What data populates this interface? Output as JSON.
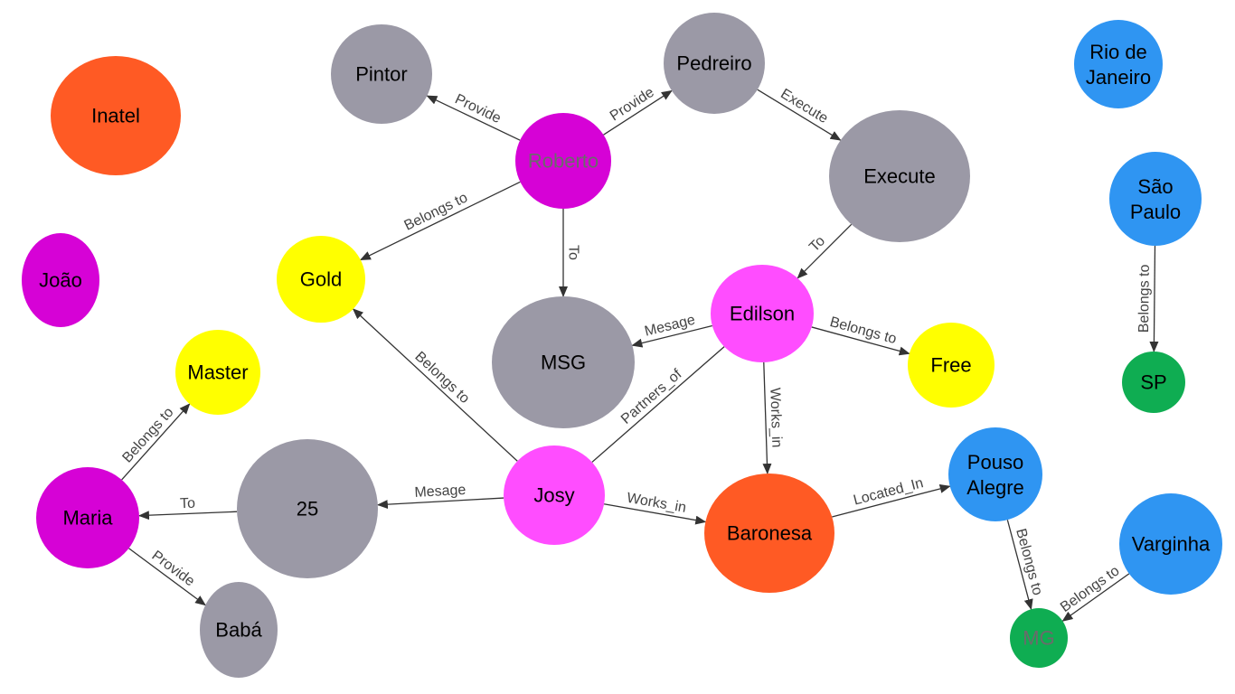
{
  "palette": {
    "gray": "#9b99a6",
    "magenta": "#d602d6",
    "pink": "#ff4dff",
    "yellow": "#ffff00",
    "orange": "#ff5a24",
    "blue": "#2f95f2",
    "green": "#0fad52",
    "label_dark": "#000000",
    "label_muted": "#6b6b6b",
    "edge": "#333333"
  },
  "nodes": [
    {
      "id": "inatel",
      "label": "Inatel",
      "color": "orange"
    },
    {
      "id": "joao",
      "label": "João",
      "color": "magenta"
    },
    {
      "id": "pintor",
      "label": "Pintor",
      "color": "gray"
    },
    {
      "id": "pedreiro",
      "label": "Pedreiro",
      "color": "gray"
    },
    {
      "id": "roberto",
      "label": "Roberto",
      "color": "magenta",
      "text_color": "label_muted"
    },
    {
      "id": "execute",
      "label": "Execute",
      "color": "gray"
    },
    {
      "id": "gold",
      "label": "Gold",
      "color": "yellow"
    },
    {
      "id": "msg",
      "label": "MSG",
      "color": "gray"
    },
    {
      "id": "edilson",
      "label": "Edilson",
      "color": "pink"
    },
    {
      "id": "free",
      "label": "Free",
      "color": "yellow"
    },
    {
      "id": "master",
      "label": "Master",
      "color": "yellow"
    },
    {
      "id": "maria",
      "label": "Maria",
      "color": "magenta"
    },
    {
      "id": "n25",
      "label": "25",
      "color": "gray"
    },
    {
      "id": "josy",
      "label": "Josy",
      "color": "pink"
    },
    {
      "id": "baronesa",
      "label": "Baronesa",
      "color": "orange"
    },
    {
      "id": "baba",
      "label": "Babá",
      "color": "gray"
    },
    {
      "id": "rio",
      "label": "Rio de Janeiro",
      "color": "blue"
    },
    {
      "id": "saopaulo",
      "label": "São Paulo",
      "color": "blue"
    },
    {
      "id": "sp",
      "label": "SP",
      "color": "green"
    },
    {
      "id": "pousoalegre",
      "label": "Pouso Alegre",
      "color": "blue"
    },
    {
      "id": "varginha",
      "label": "Varginha",
      "color": "blue"
    },
    {
      "id": "mg",
      "label": "MG",
      "color": "green",
      "text_color": "label_muted"
    }
  ],
  "edges": [
    {
      "from": "roberto",
      "to": "pintor",
      "label": "Provide"
    },
    {
      "from": "roberto",
      "to": "pedreiro",
      "label": "Provide"
    },
    {
      "from": "pedreiro",
      "to": "execute",
      "label": "Execute"
    },
    {
      "from": "roberto",
      "to": "gold",
      "label": "Belongs to"
    },
    {
      "from": "roberto",
      "to": "msg",
      "label": "To"
    },
    {
      "from": "execute",
      "to": "edilson",
      "label": "To"
    },
    {
      "from": "edilson",
      "to": "msg",
      "label": "Mesage"
    },
    {
      "from": "edilson",
      "to": "free",
      "label": "Belongs to"
    },
    {
      "from": "josy",
      "to": "gold",
      "label": "Belongs to"
    },
    {
      "from": "josy",
      "to": "edilson",
      "label": "Partners_of",
      "arrow": false
    },
    {
      "from": "edilson",
      "to": "baronesa",
      "label": "Works_in"
    },
    {
      "from": "josy",
      "to": "n25",
      "label": "Mesage"
    },
    {
      "from": "josy",
      "to": "baronesa",
      "label": "Works_in"
    },
    {
      "from": "n25",
      "to": "maria",
      "label": "To"
    },
    {
      "from": "maria",
      "to": "master",
      "label": "Belongs to"
    },
    {
      "from": "maria",
      "to": "baba",
      "label": "Provide"
    },
    {
      "from": "baronesa",
      "to": "pousoalegre",
      "label": "Located_In"
    },
    {
      "from": "saopaulo",
      "to": "sp",
      "label": "Belongs to"
    },
    {
      "from": "pousoalegre",
      "to": "mg",
      "label": "Belongs to"
    },
    {
      "from": "varginha",
      "to": "mg",
      "label": "Belongs to"
    }
  ]
}
